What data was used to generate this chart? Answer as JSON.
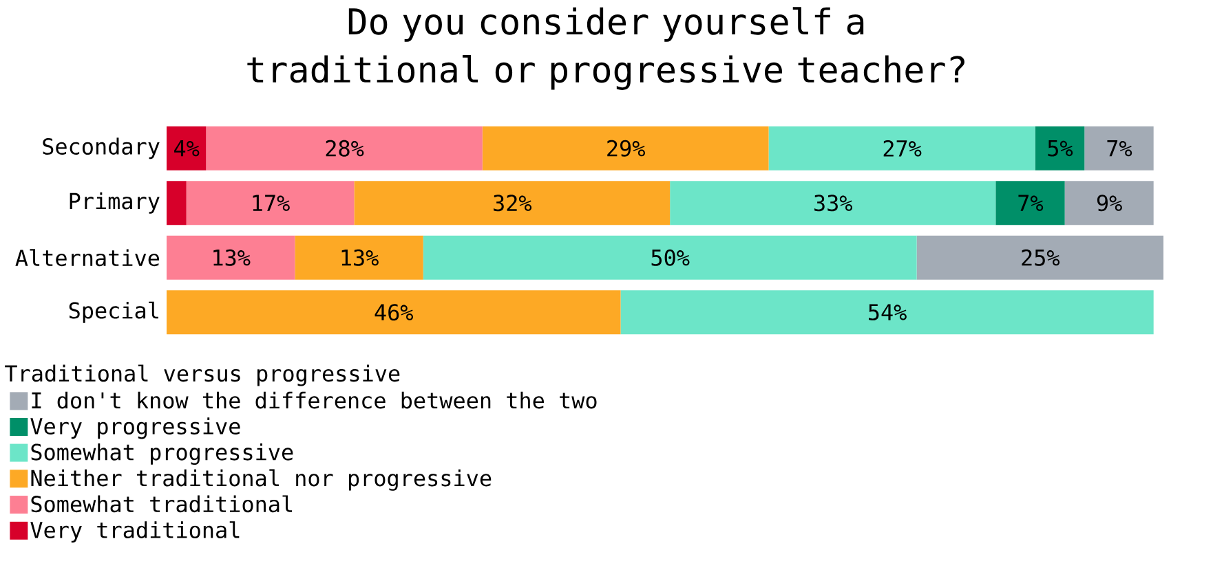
{
  "chart_data": {
    "type": "bar",
    "orientation": "horizontal",
    "stacked": true,
    "title": "Do you consider yourself a traditional or progressive teacher?",
    "legend_title": "Traditional versus progressive",
    "categories": [
      "Secondary",
      "Primary",
      "Alternative",
      "Special"
    ],
    "series": [
      {
        "name": "Very traditional",
        "color": "#d7002a",
        "values": [
          4,
          2,
          0,
          0
        ],
        "value_labels": [
          "4%",
          null,
          null,
          null
        ]
      },
      {
        "name": "Somewhat traditional",
        "color": "#fd7f93",
        "values": [
          28,
          17,
          13,
          0
        ],
        "value_labels": [
          "28%",
          "17%",
          "13%",
          null
        ]
      },
      {
        "name": "Neither traditional nor progressive",
        "color": "#fda925",
        "values": [
          29,
          32,
          13,
          46
        ],
        "value_labels": [
          "29%",
          "32%",
          "13%",
          "46%"
        ]
      },
      {
        "name": "Somewhat progressive",
        "color": "#6ce5c8",
        "values": [
          27,
          33,
          50,
          54
        ],
        "value_labels": [
          "27%",
          "33%",
          "50%",
          "54%"
        ]
      },
      {
        "name": "Very progressive",
        "color": "#008f68",
        "values": [
          5,
          7,
          0,
          0
        ],
        "value_labels": [
          "5%",
          "7%",
          null,
          null
        ]
      },
      {
        "name": "I don't know the difference between the two",
        "color": "#a3abb5",
        "values": [
          7,
          9,
          25,
          0
        ],
        "value_labels": [
          "7%",
          "9%",
          "25%",
          null
        ]
      }
    ],
    "tick_labels": "y",
    "legend": "bottom left"
  }
}
